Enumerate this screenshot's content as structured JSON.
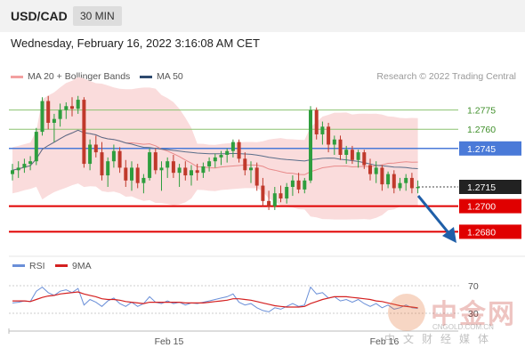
{
  "header": {
    "pair": "USD/CAD",
    "timeframe": "30 MIN"
  },
  "datetime": "Wednesday, February 16, 2022 3:16:08 AM CET",
  "legend": {
    "bb_label": "MA 20 + Bollinger Bands",
    "ma50_label": "MA 50",
    "credit": "Research © 2022 Trading Central"
  },
  "rsi_legend": {
    "rsi_label": "RSI",
    "ma9_label": "9MA"
  },
  "watermark": {
    "cn": "中金网",
    "url": "CNGOLD.COM.CN",
    "sub": "中文财经媒体"
  },
  "colors": {
    "up": "#2e9e3e",
    "down": "#c0392b",
    "bb_band": "#fadcdc",
    "ma20": "#e88a8a",
    "ma50": "#5a6e8a",
    "resistance": "#8cc270",
    "pivot": "#4a7ad8",
    "support": "#e00000",
    "current": "#222222",
    "arrow": "#1f5fa8",
    "rsi": "#6a8fd8",
    "rsi_ma": "#d42020"
  },
  "chart_data": {
    "type": "candlestick",
    "y_range": [
      1.2665,
      1.279
    ],
    "x_axis_labels": [
      "Feb 15",
      "Feb 16"
    ],
    "levels": [
      {
        "name": "resistance",
        "value": 1.2775,
        "label": "1.2775"
      },
      {
        "name": "resistance",
        "value": 1.276,
        "label": "1.2760"
      },
      {
        "name": "pivot",
        "value": 1.2745,
        "label": "1.2745"
      },
      {
        "name": "current",
        "value": 1.2715,
        "label": "1.2715"
      },
      {
        "name": "support",
        "value": 1.27,
        "label": "1.2700"
      },
      {
        "name": "support",
        "value": 1.268,
        "label": "1.2680"
      }
    ],
    "candles": [
      [
        1.2725,
        1.2733,
        1.272,
        1.2728
      ],
      [
        1.2728,
        1.2735,
        1.2722,
        1.273
      ],
      [
        1.273,
        1.2737,
        1.2726,
        1.2733
      ],
      [
        1.2733,
        1.2739,
        1.2728,
        1.2735
      ],
      [
        1.2735,
        1.2761,
        1.2732,
        1.2758
      ],
      [
        1.2758,
        1.2785,
        1.2755,
        1.2782
      ],
      [
        1.2782,
        1.2786,
        1.276,
        1.2765
      ],
      [
        1.2765,
        1.2772,
        1.275,
        1.2768
      ],
      [
        1.2768,
        1.278,
        1.2762,
        1.2775
      ],
      [
        1.2775,
        1.2781,
        1.2768,
        1.2778
      ],
      [
        1.2778,
        1.2785,
        1.277,
        1.2776
      ],
      [
        1.2776,
        1.2786,
        1.2772,
        1.2783
      ],
      [
        1.2783,
        1.2785,
        1.273,
        1.2733
      ],
      [
        1.2733,
        1.2752,
        1.2728,
        1.2748
      ],
      [
        1.2748,
        1.2755,
        1.2738,
        1.2742
      ],
      [
        1.2742,
        1.275,
        1.272,
        1.2724
      ],
      [
        1.2724,
        1.2738,
        1.2715,
        1.2735
      ],
      [
        1.2735,
        1.2748,
        1.273,
        1.2743
      ],
      [
        1.2743,
        1.2746,
        1.2726,
        1.273
      ],
      [
        1.273,
        1.2736,
        1.2715,
        1.272
      ],
      [
        1.272,
        1.2735,
        1.2712,
        1.273
      ],
      [
        1.273,
        1.2733,
        1.2714,
        1.2718
      ],
      [
        1.2718,
        1.2725,
        1.271,
        1.2722
      ],
      [
        1.2722,
        1.2745,
        1.272,
        1.2742
      ],
      [
        1.2742,
        1.2745,
        1.2725,
        1.2728
      ],
      [
        1.2728,
        1.2735,
        1.2712,
        1.273
      ],
      [
        1.273,
        1.2738,
        1.2722,
        1.2735
      ],
      [
        1.2735,
        1.274,
        1.2722,
        1.2726
      ],
      [
        1.2726,
        1.2733,
        1.2715,
        1.273
      ],
      [
        1.273,
        1.2735,
        1.272,
        1.2724
      ],
      [
        1.2724,
        1.2732,
        1.2716,
        1.2728
      ],
      [
        1.2728,
        1.2733,
        1.272,
        1.2726
      ],
      [
        1.2726,
        1.2734,
        1.2722,
        1.2731
      ],
      [
        1.2731,
        1.2738,
        1.2727,
        1.2735
      ],
      [
        1.2735,
        1.2741,
        1.273,
        1.2738
      ],
      [
        1.2738,
        1.2743,
        1.2732,
        1.274
      ],
      [
        1.274,
        1.2745,
        1.2734,
        1.2743
      ],
      [
        1.2743,
        1.2752,
        1.2738,
        1.275
      ],
      [
        1.275,
        1.2752,
        1.2734,
        1.2737
      ],
      [
        1.2737,
        1.2742,
        1.2724,
        1.2728
      ],
      [
        1.2728,
        1.2735,
        1.2718,
        1.273
      ],
      [
        1.273,
        1.2734,
        1.2712,
        1.2716
      ],
      [
        1.2716,
        1.2722,
        1.27,
        1.2704
      ],
      [
        1.2704,
        1.2712,
        1.2697,
        1.27
      ],
      [
        1.27,
        1.2715,
        1.2697,
        1.271
      ],
      [
        1.271,
        1.2716,
        1.2703,
        1.2706
      ],
      [
        1.2706,
        1.2718,
        1.2702,
        1.2715
      ],
      [
        1.2715,
        1.2724,
        1.2708,
        1.272
      ],
      [
        1.272,
        1.2726,
        1.271,
        1.2713
      ],
      [
        1.2713,
        1.2722,
        1.271,
        1.272
      ],
      [
        1.272,
        1.2778,
        1.2718,
        1.2775
      ],
      [
        1.2775,
        1.2777,
        1.2752,
        1.2756
      ],
      [
        1.2756,
        1.2766,
        1.2748,
        1.2762
      ],
      [
        1.2762,
        1.2765,
        1.2742,
        1.2748
      ],
      [
        1.2748,
        1.2755,
        1.274,
        1.2752
      ],
      [
        1.2752,
        1.2755,
        1.2736,
        1.274
      ],
      [
        1.274,
        1.2747,
        1.2733,
        1.2744
      ],
      [
        1.2744,
        1.2747,
        1.2733,
        1.2736
      ],
      [
        1.2736,
        1.2744,
        1.273,
        1.2742
      ],
      [
        1.2742,
        1.2744,
        1.2729,
        1.2732
      ],
      [
        1.2732,
        1.2737,
        1.272,
        1.2725
      ],
      [
        1.2725,
        1.2735,
        1.2718,
        1.273
      ],
      [
        1.273,
        1.2732,
        1.2712,
        1.2717
      ],
      [
        1.2717,
        1.2727,
        1.2714,
        1.2725
      ],
      [
        1.2725,
        1.2728,
        1.271,
        1.2714
      ],
      [
        1.2714,
        1.2722,
        1.2712,
        1.2718
      ],
      [
        1.2718,
        1.2725,
        1.2712,
        1.2722
      ],
      [
        1.2722,
        1.2726,
        1.271,
        1.2714
      ],
      [
        1.2714,
        1.272,
        1.271,
        1.2715
      ]
    ],
    "rsi_ticks": [
      70,
      30
    ],
    "rsi": [
      45,
      46,
      48,
      47,
      62,
      68,
      60,
      56,
      62,
      64,
      60,
      66,
      42,
      50,
      46,
      40,
      48,
      52,
      44,
      40,
      46,
      40,
      44,
      54,
      46,
      44,
      48,
      44,
      46,
      42,
      45,
      44,
      46,
      48,
      50,
      52,
      54,
      58,
      46,
      42,
      44,
      38,
      34,
      32,
      38,
      36,
      40,
      44,
      40,
      42,
      68,
      58,
      60,
      52,
      54,
      48,
      50,
      46,
      50,
      44,
      40,
      44,
      38,
      42,
      36,
      38,
      42,
      38,
      37
    ],
    "rsi_ma": [
      48,
      48,
      48,
      47,
      50,
      53,
      55,
      56,
      58,
      59,
      60,
      61,
      58,
      56,
      54,
      51,
      50,
      50,
      49,
      47,
      46,
      45,
      44,
      46,
      46,
      46,
      46,
      46,
      46,
      45,
      45,
      45,
      45,
      46,
      47,
      48,
      49,
      51,
      51,
      50,
      49,
      47,
      45,
      43,
      41,
      40,
      39,
      39,
      39,
      40,
      44,
      47,
      50,
      52,
      54,
      54,
      54,
      53,
      52,
      51,
      50,
      48,
      47,
      45,
      43,
      41,
      40,
      39,
      38
    ]
  }
}
